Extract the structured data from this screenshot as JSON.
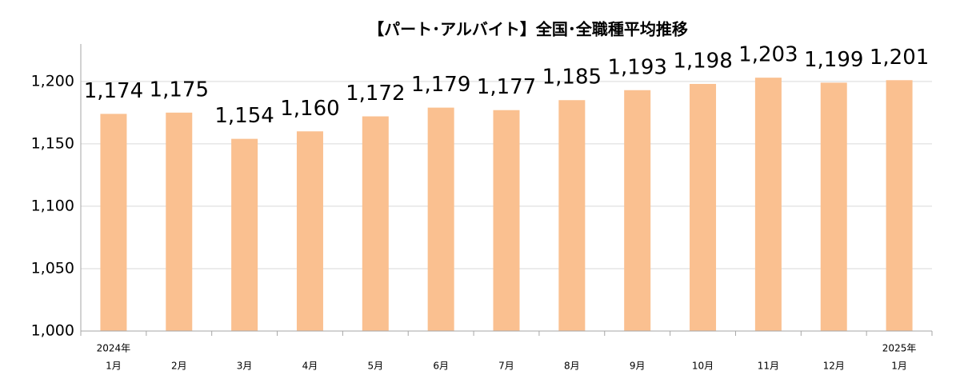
{
  "chart_data": {
    "type": "bar",
    "title": "【パート･アルバイト】全国･全職種平均推移",
    "categories": [
      [
        "2024年",
        "1月"
      ],
      [
        "2月"
      ],
      [
        "3月"
      ],
      [
        "4月"
      ],
      [
        "5月"
      ],
      [
        "6月"
      ],
      [
        "7月"
      ],
      [
        "8月"
      ],
      [
        "9月"
      ],
      [
        "10月"
      ],
      [
        "11月"
      ],
      [
        "12月"
      ],
      [
        "2025年",
        "1月"
      ]
    ],
    "values": [
      1174,
      1175,
      1154,
      1160,
      1172,
      1179,
      1177,
      1185,
      1193,
      1198,
      1203,
      1199,
      1201
    ],
    "value_labels": [
      "1,174",
      "1,175",
      "1,154",
      "1,160",
      "1,172",
      "1,179",
      "1,177",
      "1,185",
      "1,193",
      "1,198",
      "1,203",
      "1,199",
      "1,201"
    ],
    "color": "#fac090",
    "ylim": [
      1000,
      1230
    ],
    "yticks": [
      {
        "value": 1000,
        "label": "1,000"
      },
      {
        "value": 1050,
        "label": "1,050"
      },
      {
        "value": 1100,
        "label": "1,100"
      },
      {
        "value": 1150,
        "label": "1,150"
      },
      {
        "value": 1200,
        "label": "1,200"
      }
    ],
    "grid": true
  }
}
